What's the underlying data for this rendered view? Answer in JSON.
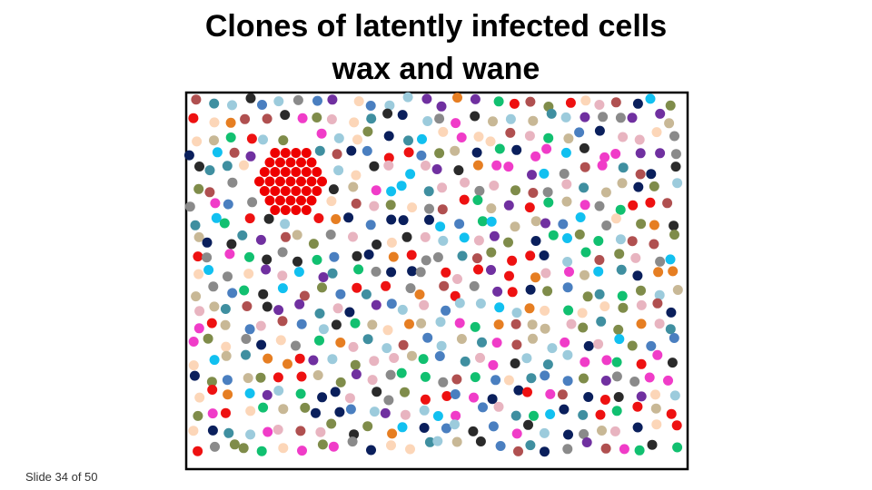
{
  "slide": {
    "title": [
      "Clones of latently infected cells",
      "wax and wane"
    ],
    "footer": "Slide 34 of 50"
  }
}
